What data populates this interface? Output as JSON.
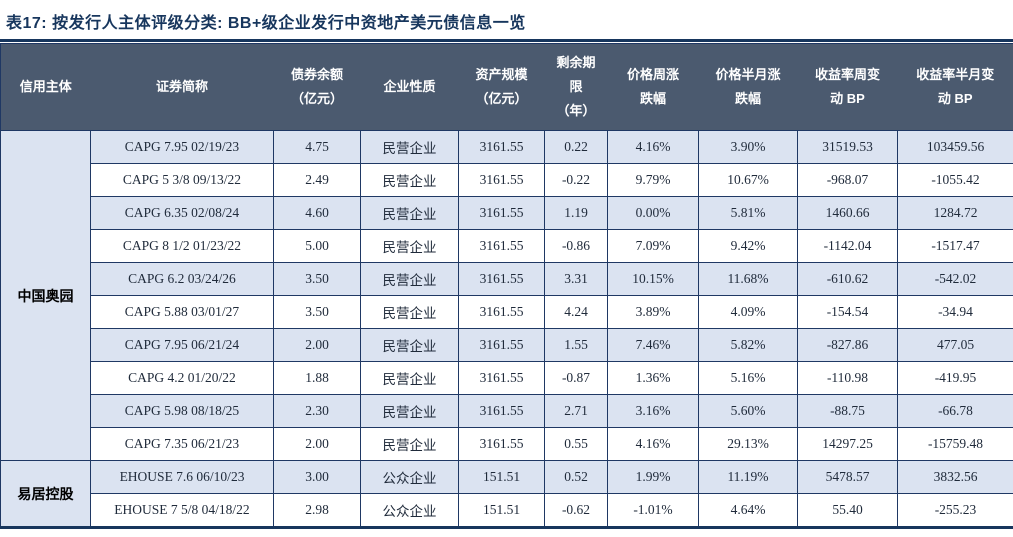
{
  "title": "表17:  按发行人主体评级分类:  BB+级企业发行中资地产美元债信息一览",
  "colors": {
    "title_text": "#17365d",
    "rule": "#17365d",
    "header_bg": "#4b5a6f",
    "header_text": "#ffffff",
    "stripe_row_bg": "#dbe3f1",
    "plain_row_bg": "#ffffff",
    "cell_border": "#1f3864",
    "data_text": "#1f2a3a"
  },
  "table": {
    "headers": [
      "信用主体",
      "证券简称",
      "债券余额\n（亿元）",
      "企业性质",
      "资产规模\n（亿元）",
      "剩余期\n限\n（年）",
      "价格周涨\n跌幅",
      "价格半月涨\n跌幅",
      "收益率周变\n动 BP",
      "收益率半月变\n动 BP"
    ],
    "groups": [
      {
        "name": "中国奥园",
        "rows": [
          [
            "CAPG 7.95 02/19/23",
            "4.75",
            "民营企业",
            "3161.55",
            "0.22",
            "4.16%",
            "3.90%",
            "31519.53",
            "103459.56"
          ],
          [
            "CAPG 5 3/8 09/13/22",
            "2.49",
            "民营企业",
            "3161.55",
            "-0.22",
            "9.79%",
            "10.67%",
            "-968.07",
            "-1055.42"
          ],
          [
            "CAPG 6.35 02/08/24",
            "4.60",
            "民营企业",
            "3161.55",
            "1.19",
            "0.00%",
            "5.81%",
            "1460.66",
            "1284.72"
          ],
          [
            "CAPG 8 1/2 01/23/22",
            "5.00",
            "民营企业",
            "3161.55",
            "-0.86",
            "7.09%",
            "9.42%",
            "-1142.04",
            "-1517.47"
          ],
          [
            "CAPG 6.2 03/24/26",
            "3.50",
            "民营企业",
            "3161.55",
            "3.31",
            "10.15%",
            "11.68%",
            "-610.62",
            "-542.02"
          ],
          [
            "CAPG 5.88 03/01/27",
            "3.50",
            "民营企业",
            "3161.55",
            "4.24",
            "3.89%",
            "4.09%",
            "-154.54",
            "-34.94"
          ],
          [
            "CAPG 7.95 06/21/24",
            "2.00",
            "民营企业",
            "3161.55",
            "1.55",
            "7.46%",
            "5.82%",
            "-827.86",
            "477.05"
          ],
          [
            "CAPG 4.2 01/20/22",
            "1.88",
            "民营企业",
            "3161.55",
            "-0.87",
            "1.36%",
            "5.16%",
            "-110.98",
            "-419.95"
          ],
          [
            "CAPG 5.98 08/18/25",
            "2.30",
            "民营企业",
            "3161.55",
            "2.71",
            "3.16%",
            "5.60%",
            "-88.75",
            "-66.78"
          ],
          [
            "CAPG 7.35 06/21/23",
            "2.00",
            "民营企业",
            "3161.55",
            "0.55",
            "4.16%",
            "29.13%",
            "14297.25",
            "-15759.48"
          ]
        ]
      },
      {
        "name": "易居控股",
        "rows": [
          [
            "EHOUSE 7.6 06/10/23",
            "3.00",
            "公众企业",
            "151.51",
            "0.52",
            "1.99%",
            "11.19%",
            "5478.57",
            "3832.56"
          ],
          [
            "EHOUSE 7 5/8 04/18/22",
            "2.98",
            "公众企业",
            "151.51",
            "-0.62",
            "-1.01%",
            "4.64%",
            "55.40",
            "-255.23"
          ]
        ]
      }
    ]
  }
}
